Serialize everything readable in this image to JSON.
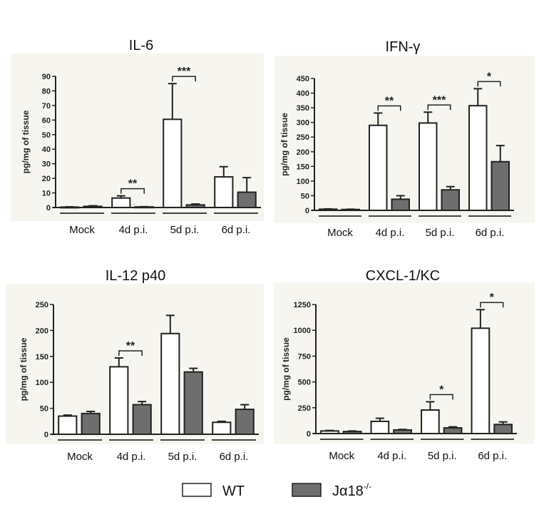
{
  "chart_data": [
    {
      "type": "bar",
      "title": "IL-6",
      "ylabel": "pg/mg of tissue",
      "ylim": [
        0,
        90
      ],
      "yticks": [
        0,
        10,
        20,
        30,
        40,
        50,
        60,
        70,
        80,
        90
      ],
      "categories": [
        "Mock",
        "4d p.i.",
        "5d p.i.",
        "6d p.i."
      ],
      "series": [
        {
          "name": "WT",
          "values": [
            0.3,
            6.5,
            60.5,
            21
          ],
          "errors": [
            0.2,
            1.5,
            24.5,
            7
          ]
        },
        {
          "name": "Jα18-/-",
          "values": [
            0.8,
            0.4,
            1.8,
            10.5
          ],
          "errors": [
            0.4,
            0.2,
            0.6,
            10
          ]
        }
      ],
      "significance": [
        "",
        "**",
        "***",
        ""
      ]
    },
    {
      "type": "bar",
      "title": "IFN-γ",
      "ylabel": "pg/mg of tissue",
      "ylim": [
        0,
        450
      ],
      "yticks": [
        0,
        50,
        100,
        150,
        200,
        250,
        300,
        350,
        400,
        450
      ],
      "categories": [
        "Mock",
        "4d p.i.",
        "5d p.i.",
        "6d p.i."
      ],
      "series": [
        {
          "name": "WT",
          "values": [
            4,
            290,
            298,
            357
          ],
          "errors": [
            1,
            42,
            37,
            58
          ]
        },
        {
          "name": "Jα18-/-",
          "values": [
            3,
            38,
            70,
            166
          ],
          "errors": [
            1,
            12,
            11,
            55
          ]
        }
      ],
      "significance": [
        "",
        "**",
        "***",
        "*"
      ]
    },
    {
      "type": "bar",
      "title": "IL-12 p40",
      "ylabel": "pg/mg of tissue",
      "ylim": [
        0,
        250
      ],
      "yticks": [
        0,
        50,
        100,
        150,
        200,
        250
      ],
      "categories": [
        "Mock",
        "4d p.i.",
        "5d p.i.",
        "6d p.i."
      ],
      "series": [
        {
          "name": "WT",
          "values": [
            35,
            130,
            194,
            23
          ],
          "errors": [
            2,
            17,
            35,
            2
          ]
        },
        {
          "name": "Jα18-/-",
          "values": [
            40,
            57,
            120,
            48
          ],
          "errors": [
            4,
            6,
            7,
            9
          ]
        }
      ],
      "significance": [
        "",
        "**",
        "",
        ""
      ]
    },
    {
      "type": "bar",
      "title": "CXCL-1/KC",
      "ylabel": "pg/mg of tissue",
      "ylim": [
        0,
        1250
      ],
      "yticks": [
        0,
        250,
        500,
        750,
        1000,
        1250
      ],
      "categories": [
        "Mock",
        "4d p.i.",
        "5d p.i.",
        "6d p.i."
      ],
      "series": [
        {
          "name": "WT",
          "values": [
            25,
            118,
            228,
            1020
          ],
          "errors": [
            5,
            30,
            80,
            180
          ]
        },
        {
          "name": "Jα18-/-",
          "values": [
            20,
            35,
            55,
            88
          ],
          "errors": [
            5,
            5,
            10,
            25
          ]
        }
      ],
      "significance": [
        "",
        "",
        "*",
        "*"
      ]
    }
  ],
  "legend": {
    "items": [
      {
        "label": "WT",
        "color": "#ffffff"
      },
      {
        "label": "Jα18",
        "superscript": "-/-",
        "color": "#6e6e6e"
      }
    ]
  },
  "colors": {
    "panel_bg": "#f6f5f0",
    "wt": "#ffffff",
    "ko": "#6e6e6e",
    "stroke": "#222222"
  }
}
